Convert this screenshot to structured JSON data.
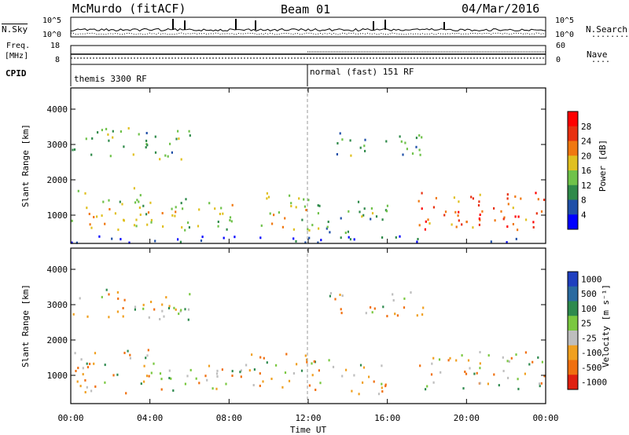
{
  "header": {
    "title": "McMurdo (fitACF)",
    "beam": "Beam 01",
    "date": "04/Mar/2016"
  },
  "noise_strip": {
    "left_label": "N.Sky",
    "right_label": "N.Search",
    "right_dots": "........",
    "left_ticks": [
      "10^5",
      "10^0"
    ],
    "right_ticks": [
      "10^5",
      "10^0"
    ]
  },
  "freq_strip": {
    "left_label_1": "Freq.",
    "left_label_2": "[MHz]",
    "right_label": "Nave",
    "right_dots": "....",
    "left_ticks": [
      "18",
      "8"
    ],
    "right_ticks": [
      "60",
      "0"
    ]
  },
  "cpid": {
    "label": "CPID",
    "mode_1": "themis 3300 RF",
    "mode_2": "normal (fast) 151 RF"
  },
  "chart_data": [
    {
      "type": "heatmap",
      "name": "power",
      "ylabel": "Slant Range [km]",
      "yticks": [
        "1000",
        "2000",
        "3000",
        "4000"
      ],
      "ylim": [
        200,
        4600
      ],
      "xlim": [
        0,
        24
      ],
      "colorbar_label": "Power [dB]",
      "colorbar_ticks": [
        "4",
        "8",
        "12",
        "16",
        "20",
        "24",
        "28"
      ],
      "colors": [
        "#0000ff",
        "#1f4fa8",
        "#2f8a4a",
        "#6fc24a",
        "#e0c020",
        "#f07810",
        "#e83010",
        "#ff0000"
      ],
      "scatter_bands": [
        {
          "x0": 0.0,
          "x1": 4.0,
          "y0": 500,
          "y1": 1800,
          "level": 0.55
        },
        {
          "x0": 4.0,
          "x1": 9.0,
          "y0": 600,
          "y1": 1500,
          "level": 0.45
        },
        {
          "x0": 9.0,
          "x1": 12.0,
          "y0": 600,
          "y1": 1700,
          "level": 0.5
        },
        {
          "x0": 12.0,
          "x1": 16.0,
          "y0": 500,
          "y1": 1500,
          "level": 0.35
        },
        {
          "x0": 17.5,
          "x1": 24.0,
          "y0": 600,
          "y1": 1700,
          "level": 0.8
        },
        {
          "x0": 19.5,
          "x1": 22.5,
          "y0": 700,
          "y1": 1200,
          "level": 0.95
        },
        {
          "x0": 0.0,
          "x1": 6.0,
          "y0": 2600,
          "y1": 3500,
          "level": 0.35
        },
        {
          "x0": 13.0,
          "x1": 18.0,
          "y0": 2700,
          "y1": 3400,
          "level": 0.3
        },
        {
          "x0": 0.0,
          "x1": 24.0,
          "y0": 250,
          "y1": 450,
          "level": 0.15
        }
      ]
    },
    {
      "type": "heatmap",
      "name": "velocity",
      "ylabel": "Slant Range [km]",
      "yticks": [
        "1000",
        "2000",
        "3000",
        "4000"
      ],
      "ylim": [
        200,
        4600
      ],
      "xlim": [
        0,
        24
      ],
      "colorbar_label": "Velocity [m s⁻¹]",
      "colorbar_ticks": [
        "1000",
        "500",
        "100",
        "25",
        "-25",
        "-100",
        "-500",
        "-1000"
      ],
      "colors": [
        "#1f3fbf",
        "#2a6aa0",
        "#2e8a4e",
        "#7ac840",
        "#bebebe",
        "#f0a020",
        "#f07010",
        "#e02010"
      ],
      "scatter_bands": [
        {
          "x0": 0.0,
          "x1": 4.0,
          "y0": 500,
          "y1": 1800,
          "level": 0.6
        },
        {
          "x0": 4.0,
          "x1": 9.0,
          "y0": 600,
          "y1": 1500,
          "level": 0.4
        },
        {
          "x0": 9.0,
          "x1": 12.0,
          "y0": 600,
          "y1": 1700,
          "level": 0.5
        },
        {
          "x0": 12.0,
          "x1": 16.0,
          "y0": 500,
          "y1": 1500,
          "level": 0.6
        },
        {
          "x0": 17.5,
          "x1": 24.0,
          "y0": 600,
          "y1": 1700,
          "level": 0.3
        },
        {
          "x0": 0.0,
          "x1": 6.0,
          "y0": 2600,
          "y1": 3500,
          "level": 0.45
        },
        {
          "x0": 13.0,
          "x1": 18.0,
          "y0": 2700,
          "y1": 3400,
          "level": 0.6
        }
      ]
    }
  ],
  "x_axis": {
    "ticks": [
      "00:00",
      "04:00",
      "08:00",
      "12:00",
      "16:00",
      "20:00",
      "00:00"
    ],
    "label": "Time UT"
  }
}
